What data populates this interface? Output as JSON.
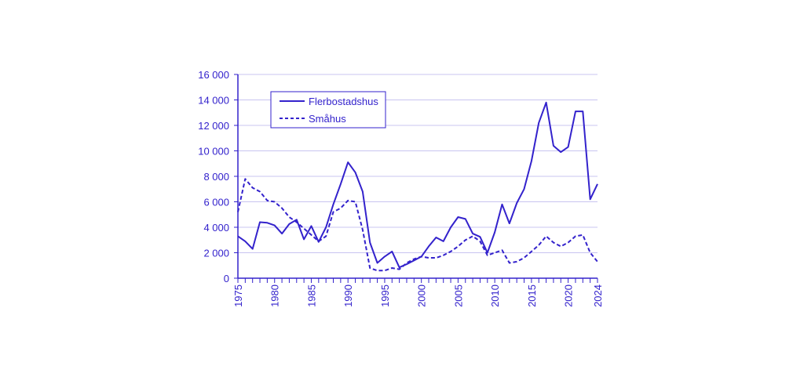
{
  "chart_data": {
    "type": "line",
    "title": "",
    "xlabel": "",
    "ylabel": "",
    "xlim": [
      1975,
      2024
    ],
    "ylim": [
      0,
      16000
    ],
    "yticks": [
      0,
      2000,
      4000,
      6000,
      8000,
      10000,
      12000,
      14000,
      16000
    ],
    "ytick_labels": [
      "0",
      "2 000",
      "4 000",
      "6 000",
      "8 000",
      "10 000",
      "12 000",
      "14 000",
      "16 000"
    ],
    "xtick_labels": [
      "1975",
      "1980",
      "1985",
      "1990",
      "1995",
      "2000",
      "2005",
      "2010",
      "2015",
      "2020",
      "2024"
    ],
    "grid": true,
    "legend_placement": "top-left",
    "color": "#3322cc",
    "x": [
      1975,
      1976,
      1977,
      1978,
      1979,
      1980,
      1981,
      1982,
      1983,
      1984,
      1985,
      1986,
      1987,
      1988,
      1989,
      1990,
      1991,
      1992,
      1993,
      1994,
      1995,
      1996,
      1997,
      1998,
      1999,
      2000,
      2001,
      2002,
      2003,
      2004,
      2005,
      2006,
      2007,
      2008,
      2009,
      2010,
      2011,
      2012,
      2013,
      2014,
      2015,
      2016,
      2017,
      2018,
      2019,
      2020,
      2021,
      2022,
      2023,
      2024
    ],
    "series": [
      {
        "name": "Flerbostadshus",
        "style": "solid",
        "values": [
          3300,
          2900,
          2300,
          4400,
          4350,
          4150,
          3500,
          4250,
          4600,
          3050,
          4100,
          2850,
          4000,
          5800,
          7400,
          9100,
          8300,
          6800,
          2800,
          1200,
          1700,
          2100,
          850,
          1100,
          1400,
          1700,
          2500,
          3200,
          2900,
          4000,
          4800,
          4650,
          3500,
          3250,
          2000,
          3600,
          5800,
          4300,
          5900,
          7000,
          9200,
          12200,
          13800,
          10400,
          9900,
          10300,
          13100,
          13100,
          6200,
          7400
        ]
      },
      {
        "name": "Småhus",
        "style": "dashed",
        "values": [
          5200,
          7800,
          7100,
          6800,
          6100,
          6000,
          5500,
          4800,
          4400,
          3900,
          3400,
          2900,
          3300,
          5200,
          5500,
          6100,
          6000,
          3800,
          800,
          600,
          600,
          800,
          700,
          1200,
          1500,
          1700,
          1600,
          1600,
          1800,
          2100,
          2500,
          3000,
          3300,
          2900,
          1800,
          2000,
          2200,
          1200,
          1300,
          1600,
          2100,
          2600,
          3300,
          2800,
          2500,
          2800,
          3300,
          3400,
          2000,
          1300
        ]
      }
    ]
  }
}
